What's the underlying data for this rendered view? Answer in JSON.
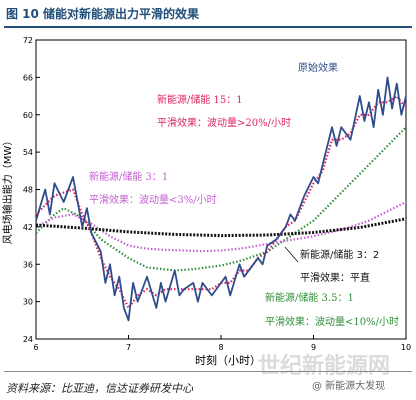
{
  "figure": {
    "title": "图 10 储能对新能源出力平滑的效果",
    "source": "资料来源：比亚迪，信达证券研发中心",
    "watermark": "世纪新能源网",
    "watermark_handle": "@ 新能源大发现"
  },
  "chart_data": {
    "type": "line",
    "title": "",
    "xlabel": "时刻（小时）",
    "ylabel": "风电场输出能力（MW）",
    "xlim": [
      6,
      10
    ],
    "ylim": [
      24,
      72
    ],
    "xticks": [
      6,
      7,
      8,
      9,
      10
    ],
    "yticks": [
      24,
      30,
      36,
      42,
      48,
      54,
      60,
      66,
      72
    ],
    "grid": false,
    "legend": "none",
    "series": [
      {
        "name": "原始效果",
        "color": "#2f4d8c",
        "style": "solid",
        "x": [
          6.0,
          6.1,
          6.15,
          6.2,
          6.3,
          6.4,
          6.5,
          6.55,
          6.6,
          6.7,
          6.75,
          6.8,
          6.85,
          6.9,
          6.95,
          7.0,
          7.05,
          7.1,
          7.15,
          7.2,
          7.3,
          7.35,
          7.4,
          7.5,
          7.55,
          7.6,
          7.7,
          7.75,
          7.8,
          7.9,
          8.0,
          8.05,
          8.1,
          8.2,
          8.25,
          8.3,
          8.4,
          8.45,
          8.5,
          8.6,
          8.7,
          8.75,
          8.8,
          8.9,
          9.0,
          9.05,
          9.1,
          9.2,
          9.25,
          9.3,
          9.4,
          9.5,
          9.55,
          9.6,
          9.65,
          9.7,
          9.75,
          9.8,
          9.85,
          9.9,
          9.95,
          10.0
        ],
        "y": [
          43,
          48,
          44,
          49,
          46,
          50,
          42,
          45,
          41,
          38,
          33,
          36,
          31,
          34,
          29,
          27,
          33,
          30,
          32,
          34,
          29,
          33,
          30,
          35,
          31,
          32,
          33,
          30,
          33,
          31,
          33,
          34,
          31,
          36,
          34,
          35,
          37,
          36,
          39,
          40,
          42,
          44,
          43,
          47,
          50,
          49,
          52,
          58,
          55,
          58,
          56,
          63,
          59,
          62,
          58,
          64,
          60,
          66,
          61,
          65,
          60,
          63
        ]
      },
      {
        "name": "新能源/储能 15：1",
        "color": "#e0245e",
        "style": "dotted",
        "x": [
          6.0,
          6.2,
          6.4,
          6.5,
          6.6,
          6.7,
          6.8,
          6.9,
          7.0,
          7.1,
          7.2,
          7.3,
          7.4,
          7.5,
          7.6,
          7.7,
          7.8,
          7.9,
          8.0,
          8.1,
          8.2,
          8.3,
          8.4,
          8.5,
          8.6,
          8.7,
          8.8,
          8.9,
          9.0,
          9.1,
          9.2,
          9.3,
          9.4,
          9.5,
          9.6,
          9.7,
          9.8,
          9.9,
          10.0
        ],
        "y": [
          44,
          47,
          48,
          44,
          41,
          37,
          34,
          32,
          29,
          31,
          32,
          31,
          32,
          32,
          32,
          32,
          32,
          32,
          33,
          33,
          35,
          35,
          37,
          38,
          40,
          42,
          43,
          46,
          49,
          51,
          56,
          56,
          57,
          60,
          60,
          62,
          62,
          63,
          61
        ]
      },
      {
        "name": "新能源/储能 3：1",
        "color": "#c35fd0",
        "style": "dotted",
        "x": [
          6.0,
          6.2,
          6.4,
          6.6,
          6.8,
          7.0,
          7.2,
          7.4,
          7.6,
          7.8,
          8.0,
          8.2,
          8.4,
          8.6,
          8.8,
          9.0,
          9.2,
          9.4,
          9.6,
          9.8,
          10.0
        ],
        "y": [
          42,
          43.5,
          44,
          42.5,
          40.5,
          39,
          38.5,
          38.3,
          38.2,
          38.1,
          38.2,
          38.5,
          39,
          39.5,
          40,
          40.5,
          41.2,
          42,
          43,
          44.5,
          46
        ]
      },
      {
        "name": "新能源/储能 3.5：1",
        "color": "#2f8f3a",
        "style": "dotted",
        "x": [
          6.0,
          6.2,
          6.3,
          6.5,
          6.7,
          7.0,
          7.2,
          7.5,
          7.7,
          8.0,
          8.2,
          8.5,
          8.7,
          9.0,
          9.2,
          9.4,
          9.6,
          9.8,
          10.0
        ],
        "y": [
          41,
          44,
          45,
          43.5,
          40,
          37,
          35.5,
          35,
          35.2,
          35.8,
          36.5,
          38,
          40,
          43,
          46,
          49,
          52,
          55,
          58
        ]
      },
      {
        "name": "新能源/储能 3：2",
        "color": "#111111",
        "style": "dotted",
        "x": [
          6.0,
          6.5,
          7.0,
          7.5,
          8.0,
          8.5,
          9.0,
          9.5,
          10.0
        ],
        "y": [
          42.3,
          41.8,
          41.2,
          40.8,
          40.6,
          40.7,
          41.1,
          41.9,
          43.3
        ]
      }
    ],
    "annotations": [
      {
        "text": "原始效果",
        "color": "#2f4d8c"
      },
      {
        "text": "新能源/储能 15：1",
        "color": "#e0245e"
      },
      {
        "text": "平滑效果：波动量>20%/小时",
        "color": "#e0245e"
      },
      {
        "text": "新能源/储能 3：1",
        "color": "#c35fd0"
      },
      {
        "text": "平滑效果：波动量<3%/小时",
        "color": "#c35fd0"
      },
      {
        "text": "新能源/储能 3：2",
        "color": "#111111"
      },
      {
        "text": "平滑效果：平直",
        "color": "#111111"
      },
      {
        "text": "新能源/储能 3.5：1",
        "color": "#2f8f3a"
      },
      {
        "text": "平滑效果：波动量<10%/小时",
        "color": "#2f8f3a"
      }
    ]
  }
}
